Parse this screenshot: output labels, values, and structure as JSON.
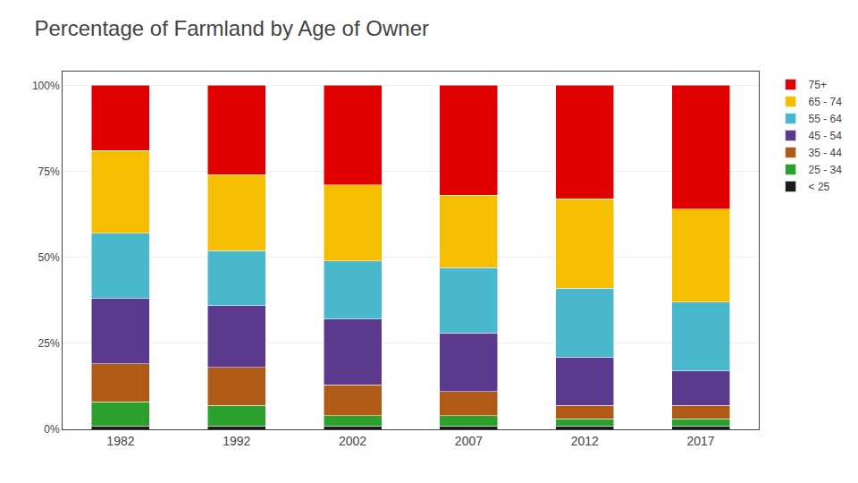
{
  "chart_data": {
    "type": "bar",
    "title": "Percentage of Farmland by Age of Owner",
    "stacked": true,
    "categories": [
      "1982",
      "1992",
      "2002",
      "2007",
      "2012",
      "2017"
    ],
    "series": [
      {
        "name": "< 25",
        "color": "#1a1a1a",
        "values": [
          1,
          1,
          1,
          1,
          1,
          1
        ]
      },
      {
        "name": "25 - 34",
        "color": "#2ca02c",
        "values": [
          7,
          6,
          3,
          3,
          2,
          2
        ]
      },
      {
        "name": "35 - 44",
        "color": "#b05a18",
        "values": [
          11,
          11,
          9,
          7,
          4,
          4
        ]
      },
      {
        "name": "45 - 54",
        "color": "#5b3a8e",
        "values": [
          19,
          18,
          19,
          17,
          14,
          10
        ]
      },
      {
        "name": "55 - 64",
        "color": "#4ab8cc",
        "values": [
          19,
          16,
          17,
          19,
          20,
          20
        ]
      },
      {
        "name": "65 - 74",
        "color": "#f5bf00",
        "values": [
          24,
          22,
          22,
          21,
          26,
          27
        ]
      },
      {
        "name": "75+",
        "color": "#e00000",
        "values": [
          19,
          26,
          29,
          32,
          33,
          36
        ]
      }
    ],
    "ylim": [
      0,
      104
    ],
    "yticks": [
      {
        "value": 0,
        "label": "0%"
      },
      {
        "value": 25,
        "label": "25%"
      },
      {
        "value": 50,
        "label": "50%"
      },
      {
        "value": 75,
        "label": "75%"
      },
      {
        "value": 100,
        "label": "100%"
      }
    ],
    "grid": true,
    "legend": "right"
  }
}
